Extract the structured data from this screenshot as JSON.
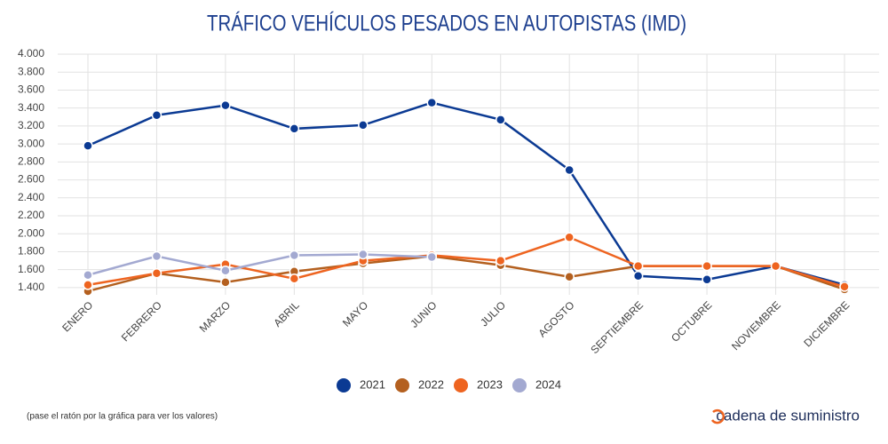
{
  "chart_data": {
    "type": "line",
    "title": "TRÁFICO VEHÍCULOS PESADOS EN AUTOPISTAS (IMD)",
    "categories": [
      "ENERO",
      "FEBRERO",
      "MARZO",
      "ABRIL",
      "MAYO",
      "JUNIO",
      "JULIO",
      "AGOSTO",
      "SEPTIEMBRE",
      "OCTUBRE",
      "NOVIEMBRE",
      "DICIEMBRE"
    ],
    "series": [
      {
        "name": "2021",
        "color": "#0b3a93",
        "values": [
          2980,
          3320,
          3430,
          3170,
          3210,
          3460,
          3270,
          2710,
          1530,
          1490,
          1640,
          1430
        ]
      },
      {
        "name": "2022",
        "color": "#b4601f",
        "values": [
          1360,
          1560,
          1460,
          1580,
          1670,
          1750,
          1650,
          1520,
          1640,
          1640,
          1640,
          1380
        ]
      },
      {
        "name": "2023",
        "color": "#ee6420",
        "values": [
          1430,
          1560,
          1660,
          1500,
          1700,
          1760,
          1700,
          1960,
          1640,
          1640,
          1640,
          1410
        ]
      },
      {
        "name": "2024",
        "color": "#a3a9d1",
        "values": [
          1540,
          1750,
          1590,
          1760,
          1770,
          1740,
          null,
          null,
          null,
          null,
          null,
          null
        ]
      }
    ],
    "ylim": [
      1320,
      4000
    ],
    "yticks": [
      {
        "value": 1400,
        "label": "1.400"
      },
      {
        "value": 1600,
        "label": "1.600"
      },
      {
        "value": 1800,
        "label": "1.800"
      },
      {
        "value": 2000,
        "label": "2.000"
      },
      {
        "value": 2200,
        "label": "2.200"
      },
      {
        "value": 2400,
        "label": "2.400"
      },
      {
        "value": 2600,
        "label": "2.600"
      },
      {
        "value": 2800,
        "label": "2.800"
      },
      {
        "value": 3000,
        "label": "3.000"
      },
      {
        "value": 3200,
        "label": "3.200"
      },
      {
        "value": 3400,
        "label": "3.400"
      },
      {
        "value": 3600,
        "label": "3.600"
      },
      {
        "value": 3800,
        "label": "3.800"
      },
      {
        "value": 4000,
        "label": "4.000"
      }
    ],
    "grid": true,
    "legend": "bottom",
    "note": "(pase el ratón por la gráfica para ver los valores)",
    "brand": "cadena de suministro"
  }
}
